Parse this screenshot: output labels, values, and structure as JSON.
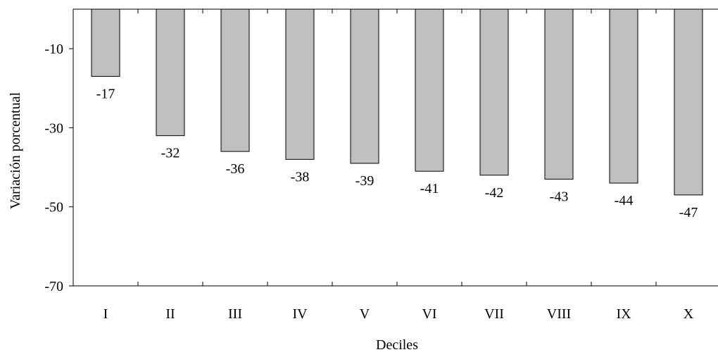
{
  "chart_data": {
    "type": "bar",
    "title": "",
    "xlabel": "Deciles",
    "ylabel": "Variación porcentual",
    "categories": [
      "I",
      "II",
      "III",
      "IV",
      "V",
      "VI",
      "VII",
      "VIII",
      "IX",
      "X"
    ],
    "values": [
      -17,
      -32,
      -36,
      -38,
      -39,
      -41,
      -42,
      -43,
      -44,
      -47
    ],
    "data_labels": [
      "-17",
      "-32",
      "-36",
      "-38",
      "-39",
      "-41",
      "-42",
      "-43",
      "-44",
      "-47"
    ],
    "ylim": [
      -70,
      0
    ],
    "yticks": [
      -10,
      -30,
      -50,
      -70
    ],
    "ytick_labels": [
      "-10",
      "-30",
      "-50",
      "-70"
    ],
    "grid": false,
    "legend": "none",
    "bar_color": "#c0c0c0",
    "bar_edge_color": "#000000"
  }
}
